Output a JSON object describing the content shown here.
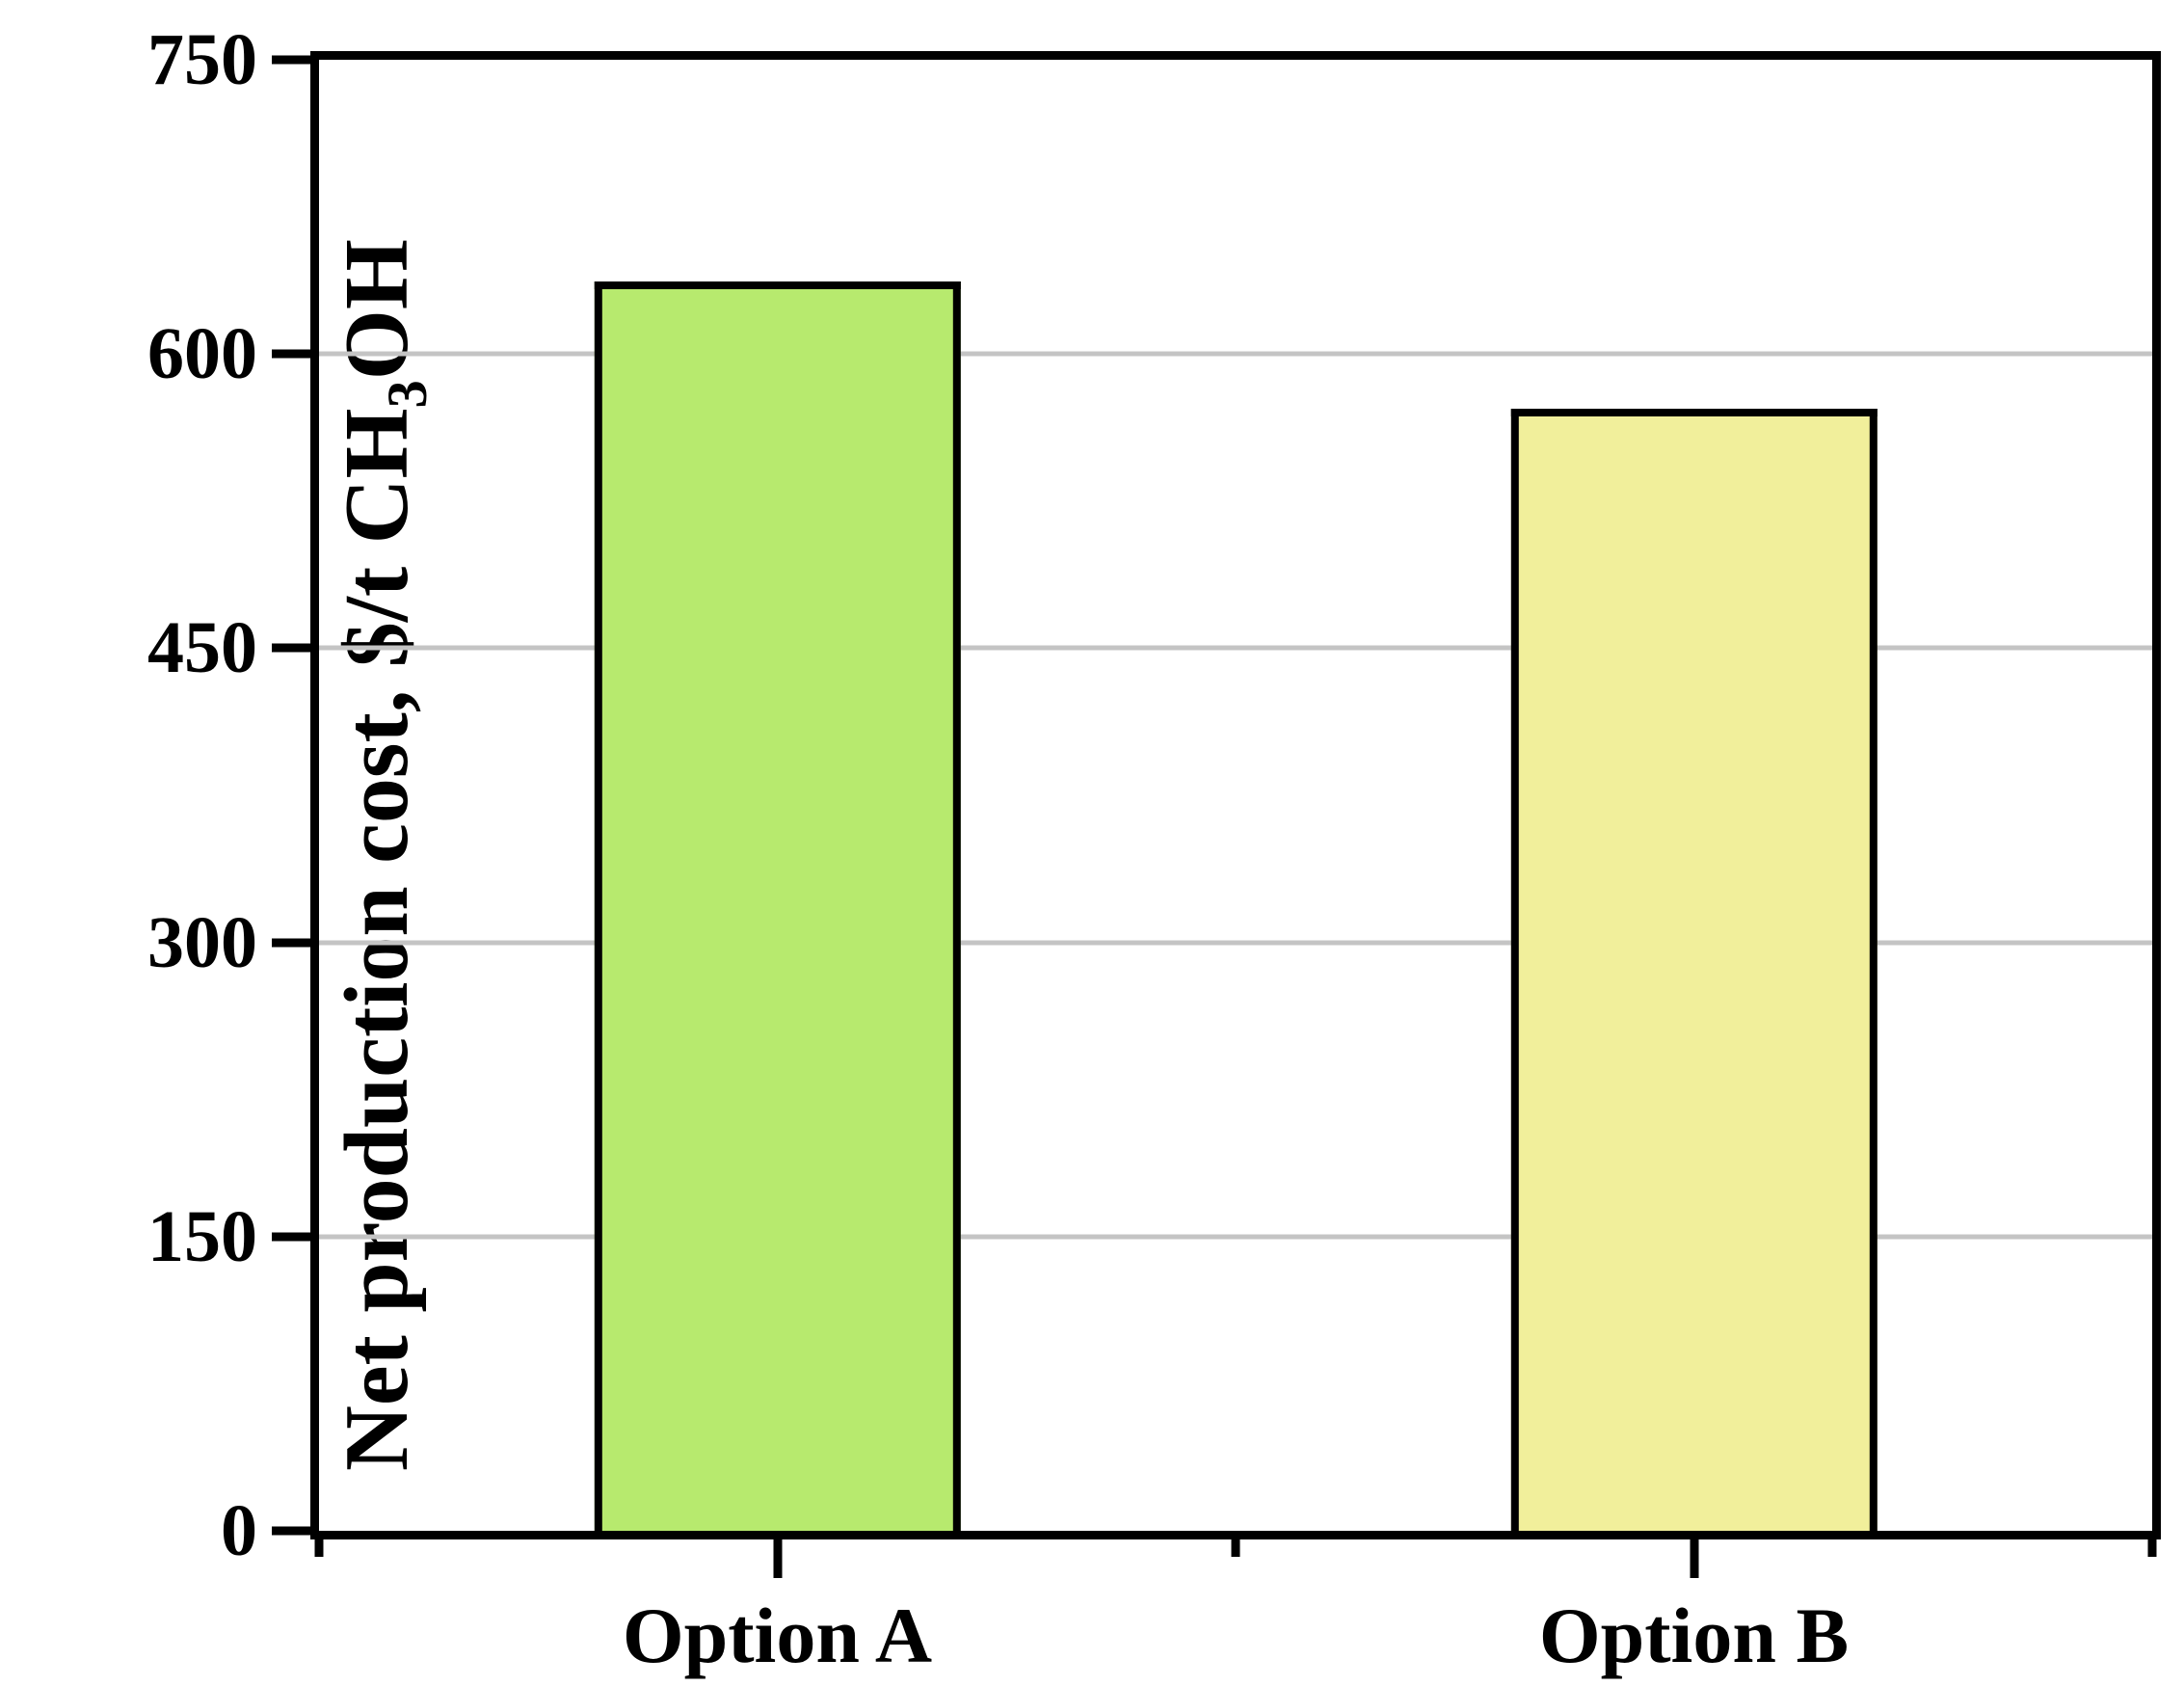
{
  "chart_data": {
    "type": "bar",
    "title": "",
    "xlabel": "",
    "ylabel": "Net production cost, $/t CH3OH",
    "ylabel_rich": {
      "pre": "Net production cost, $/t CH",
      "sub": "3",
      "post": "OH"
    },
    "categories": [
      "Option A",
      "Option B"
    ],
    "values": [
      637,
      572
    ],
    "bar_colors": [
      "#b7ea6e",
      "#f1ef9b"
    ],
    "bar_edge_color": "#000000",
    "bar_centers_pct": [
      25,
      75
    ],
    "bar_width_pct": 20,
    "ylim": [
      0,
      750
    ],
    "yticks": [
      0,
      150,
      300,
      450,
      600,
      750
    ],
    "ytick_labels": [
      "0",
      "150",
      "300",
      "450",
      "600",
      "750"
    ],
    "gridline_values": [
      150,
      300,
      450,
      600
    ],
    "gridline_color": "#c4c4c4",
    "x_minor_ticks_pct": [
      0,
      50,
      100
    ],
    "grid": "horizontal-major",
    "legend": "none",
    "frame_color": "#000000",
    "background_color": "#ffffff"
  }
}
